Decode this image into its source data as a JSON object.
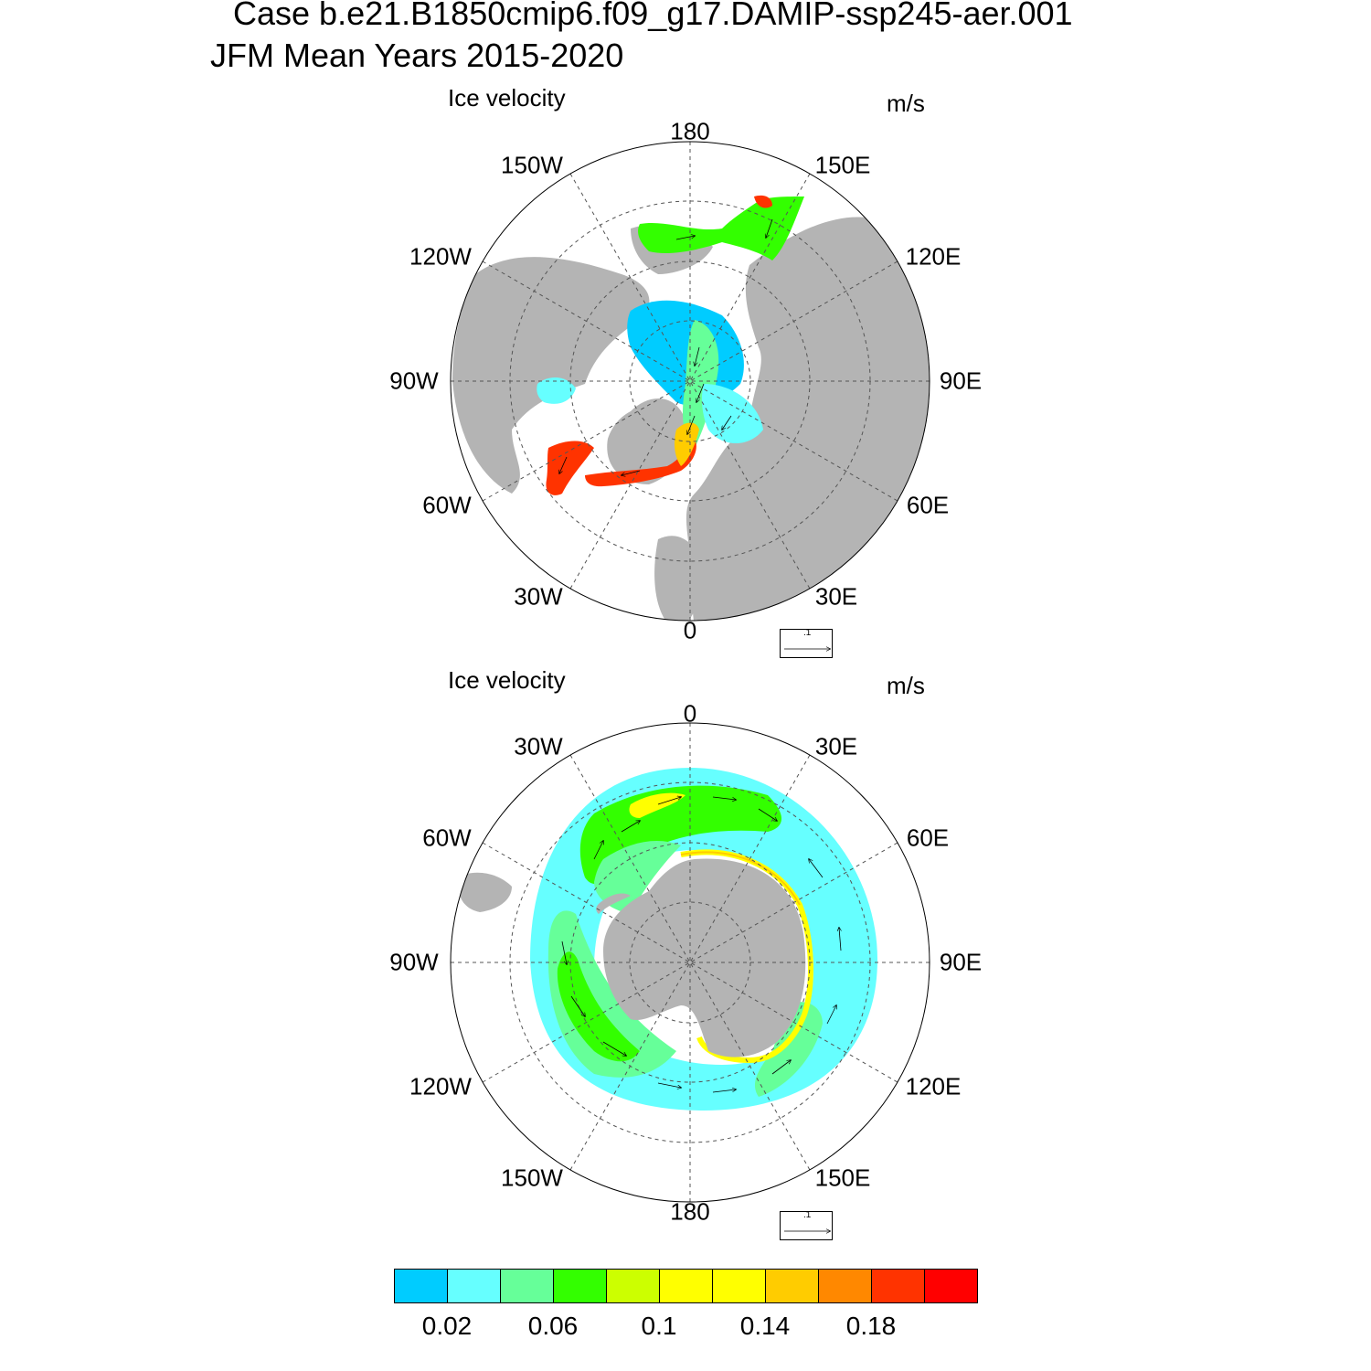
{
  "header": {
    "title_line1": "Case b.e21.B1850cmip6.f09_g17.DAMIP-ssp245-aer.001",
    "title_line2": "JFM Mean   Years 2015-2020"
  },
  "panels": [
    {
      "name": "north",
      "title": "Ice velocity",
      "units": "m/s",
      "hemisphere": "Northern",
      "lon_labels": [
        "180",
        "150E",
        "120E",
        "90E",
        "60E",
        "30E",
        "0",
        "30W",
        "60W",
        "90W",
        "120W",
        "150W"
      ],
      "ref_vector_label": ".1"
    },
    {
      "name": "south",
      "title": "Ice velocity",
      "units": "m/s",
      "hemisphere": "Southern",
      "lon_labels": [
        "0",
        "30E",
        "60E",
        "90E",
        "120E",
        "150E",
        "180",
        "150W",
        "120W",
        "90W",
        "60W",
        "30W"
      ],
      "ref_vector_label": ".1"
    }
  ],
  "chart_data": {
    "type": "heatmap",
    "title": "Ice velocity",
    "units": "m/s",
    "period": "JFM Mean Years 2015-2020",
    "colorbar": {
      "levels": [
        0.02,
        0.04,
        0.06,
        0.08,
        0.1,
        0.12,
        0.14,
        0.16,
        0.18,
        0.2
      ],
      "tick_labels": [
        "0.02",
        "0.06",
        "0.1",
        "0.14",
        "0.18"
      ],
      "colors": [
        "#00ccff",
        "#66ffff",
        "#66ff99",
        "#33ff00",
        "#ccff00",
        "#ffff00",
        "#ffff00",
        "#ffcc00",
        "#ff8800",
        "#ff3300",
        "#ff0000"
      ]
    },
    "reference_vector": 0.1
  }
}
